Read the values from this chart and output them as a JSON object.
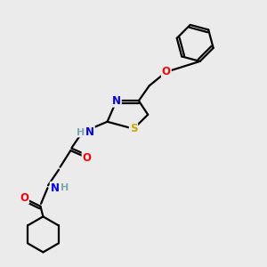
{
  "background_color": "#ebebeb",
  "atom_colors": {
    "C": "#000000",
    "H": "#7aabab",
    "N": "#0000ff",
    "O": "#ff0000",
    "S": "#ccaa00"
  },
  "bond_color": "#000000",
  "bond_width": 1.6,
  "figsize": [
    3.0,
    3.0
  ],
  "dpi": 100
}
